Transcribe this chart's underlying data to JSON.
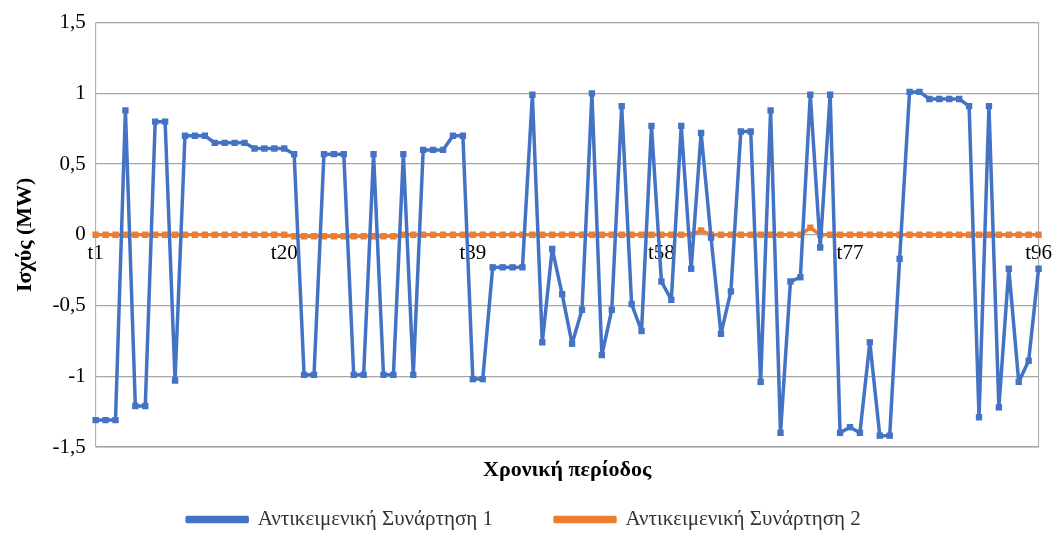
{
  "chart_data": {
    "type": "line",
    "xlabel": "Χρονική περίοδος",
    "ylabel": "Ισχύς (MW)",
    "categories": [
      "t1",
      null,
      null,
      null,
      null,
      null,
      null,
      null,
      null,
      null,
      null,
      null,
      null,
      null,
      null,
      null,
      null,
      null,
      null,
      "t20",
      null,
      null,
      null,
      null,
      null,
      null,
      null,
      null,
      null,
      null,
      null,
      null,
      null,
      null,
      null,
      null,
      null,
      null,
      "t39",
      null,
      null,
      null,
      null,
      null,
      null,
      null,
      null,
      null,
      null,
      null,
      null,
      null,
      null,
      null,
      null,
      null,
      null,
      "t58",
      null,
      null,
      null,
      null,
      null,
      null,
      null,
      null,
      null,
      null,
      null,
      null,
      null,
      null,
      null,
      null,
      null,
      null,
      "t77",
      null,
      null,
      null,
      null,
      null,
      null,
      null,
      null,
      null,
      null,
      null,
      null,
      null,
      null,
      null,
      null,
      null,
      null,
      "t96"
    ],
    "series": [
      {
        "name": "Αντικειμενική Συνάρτηση 1",
        "color": "#4472c4",
        "values": [
          -1.31,
          -1.31,
          -1.31,
          0.88,
          -1.21,
          -1.21,
          0.8,
          0.8,
          -1.03,
          0.7,
          0.7,
          0.7,
          0.65,
          0.65,
          0.65,
          0.65,
          0.61,
          0.61,
          0.61,
          0.61,
          0.57,
          -0.99,
          -0.99,
          0.57,
          0.57,
          0.57,
          -0.99,
          -0.99,
          0.57,
          -0.99,
          -0.99,
          0.57,
          -0.99,
          0.6,
          0.6,
          0.6,
          0.7,
          0.7,
          -1.02,
          -1.02,
          -0.23,
          -0.23,
          -0.23,
          -0.23,
          0.99,
          -0.76,
          -0.1,
          -0.42,
          -0.77,
          -0.53,
          1.0,
          -0.85,
          -0.53,
          0.91,
          -0.49,
          -0.68,
          0.77,
          -0.33,
          -0.46,
          0.77,
          -0.24,
          0.72,
          -0.02,
          -0.7,
          -0.4,
          0.73,
          0.73,
          -1.04,
          0.88,
          -1.4,
          -0.33,
          -0.3,
          0.99,
          -0.09,
          0.99,
          -1.4,
          -1.36,
          -1.4,
          -0.76,
          -1.42,
          -1.42,
          -0.17,
          1.01,
          1.01,
          0.96,
          0.96,
          0.96,
          0.96,
          0.91,
          -1.29,
          0.91,
          -1.22,
          -0.24,
          -1.04,
          -0.89,
          -0.24
        ]
      },
      {
        "name": "Αντικειμενική Συνάρτηση 2",
        "color": "#ed7d31",
        "values": [
          0,
          0,
          0,
          0,
          0,
          0,
          0,
          0,
          0,
          0,
          0,
          0,
          0,
          0,
          0,
          0,
          0,
          0,
          0,
          0,
          -0.01,
          -0.01,
          -0.01,
          -0.01,
          -0.01,
          -0.01,
          -0.01,
          -0.01,
          -0.01,
          -0.01,
          -0.01,
          0,
          0,
          0,
          0,
          0,
          0,
          0,
          0,
          0,
          0,
          0,
          0,
          0,
          0,
          0,
          0,
          0,
          0,
          0,
          0,
          0,
          0,
          0,
          0,
          0,
          0,
          0,
          0,
          0,
          0,
          0.03,
          0,
          0,
          0,
          0,
          0,
          0,
          0,
          0,
          0,
          0,
          0.05,
          0,
          0,
          0,
          0,
          0,
          0,
          0,
          0,
          0,
          0,
          0,
          0,
          0,
          0,
          0,
          0,
          0,
          0,
          0,
          0,
          0,
          0,
          0
        ]
      }
    ],
    "ylim": [
      -1.5,
      1.5
    ],
    "yticks": [
      {
        "value": -1.5,
        "label": "-1,5"
      },
      {
        "value": -1,
        "label": "-1"
      },
      {
        "value": -0.5,
        "label": "-0,5"
      },
      {
        "value": 0,
        "label": "0"
      },
      {
        "value": 0.5,
        "label": "0,5"
      },
      {
        "value": 1,
        "label": "1"
      },
      {
        "value": 1.5,
        "label": "1,5"
      }
    ],
    "grid": "y",
    "legend": "bottom",
    "marker": "square",
    "line_style": "solid"
  }
}
